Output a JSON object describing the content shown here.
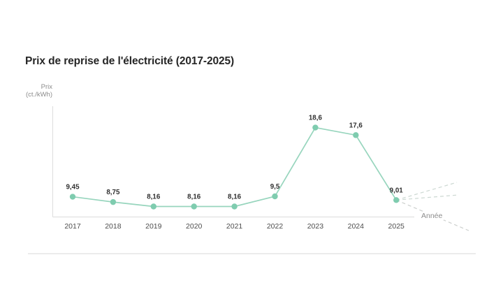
{
  "title": "Prix de reprise de l'électricité (2017-2025)",
  "chart_data": {
    "type": "line",
    "title": "Prix de reprise de l'électricité (2017-2025)",
    "xlabel": "Année",
    "ylabel": "Prix (ct./kWh)",
    "ylabel_line1": "Prix",
    "ylabel_line2": "(ct./kWh)",
    "categories": [
      "2017",
      "2018",
      "2019",
      "2020",
      "2021",
      "2022",
      "2023",
      "2024",
      "2025"
    ],
    "values": [
      9.45,
      8.75,
      8.16,
      8.16,
      8.16,
      9.5,
      18.6,
      17.6,
      9.01
    ],
    "value_labels": [
      "9,45",
      "8,75",
      "8,16",
      "8,16",
      "8,16",
      "9,5",
      "18,6",
      "17,6",
      "9,01"
    ],
    "ylim": [
      7,
      20
    ],
    "grid": false,
    "legend": false,
    "annotation": "three dashed forecast lines fan out to the right of the 2025 data point",
    "colors": {
      "line": "#97d5bd",
      "point": "#7fccaf",
      "axis": "#dcdcdc",
      "dash_upper": "#ccd8d2",
      "dash_lower": "#cdd0ce",
      "value_label": "#303030",
      "tick_label": "#4d4d4d",
      "unit_label": "#8c8c8c",
      "title": "#262626",
      "divider": "#ececec"
    }
  }
}
